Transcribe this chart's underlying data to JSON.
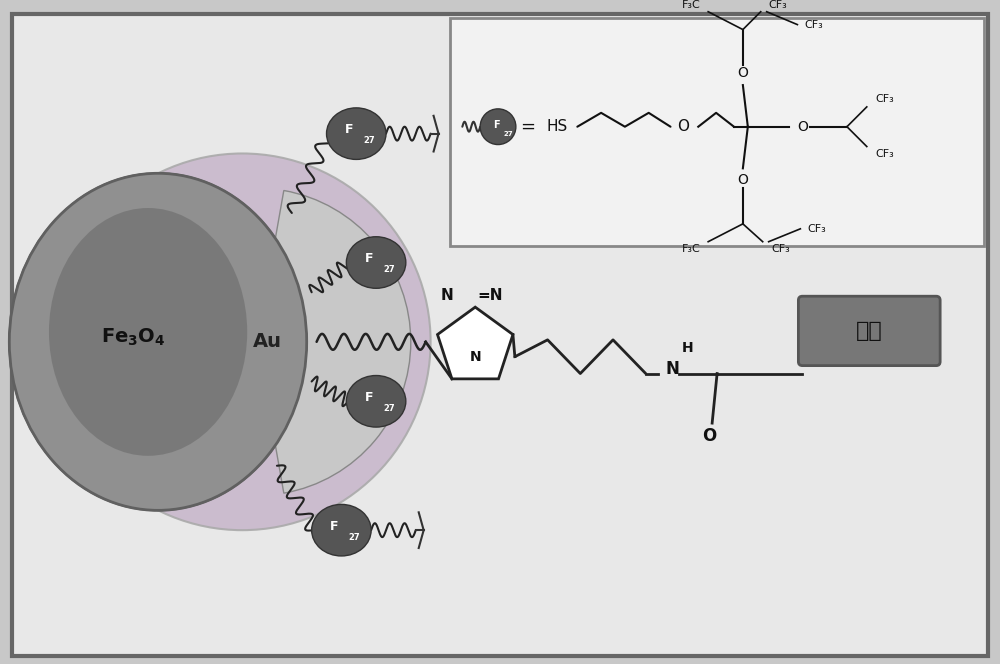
{
  "bg_color": "#c8c8c8",
  "inner_bg": "#e8e8e8",
  "border_color": "#666666",
  "fe3o4_color": "#888888",
  "fe3o4_dark": "#6a6a6a",
  "au_shell_color": "#c8c0cc",
  "au_light": "#d8d8d8",
  "f27_color": "#555555",
  "antibody_box_color": "#777777",
  "antibody_text": "抗体",
  "fe3o4_text": "Fe₃O₄",
  "au_text": "Au",
  "box_bg": "#f0f0f0",
  "box_border": "#888888",
  "line_color": "#222222"
}
